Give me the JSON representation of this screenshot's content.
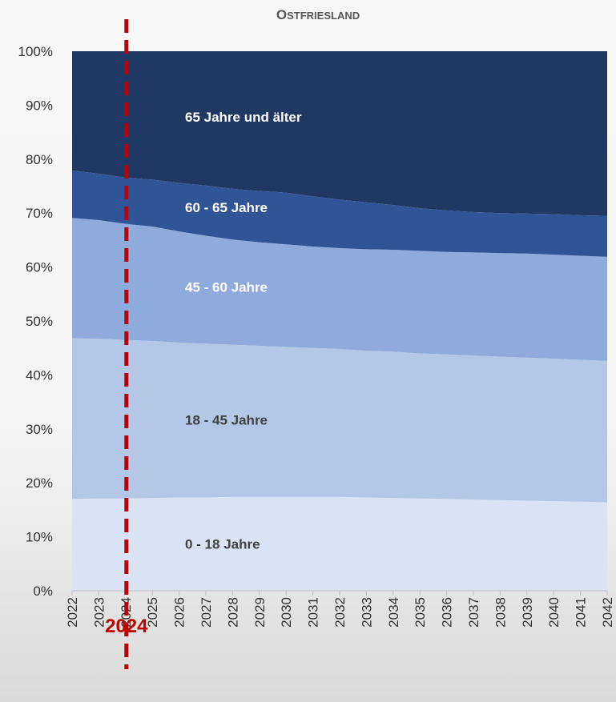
{
  "chart_data": {
    "type": "area",
    "stacked": true,
    "normalized": true,
    "title": "OSTFRIESLAND",
    "x": [
      "2022",
      "2023",
      "2024",
      "2025",
      "2026",
      "2027",
      "2028",
      "2029",
      "2030",
      "2031",
      "2032",
      "2033",
      "2034",
      "2035",
      "2036",
      "2037",
      "2038",
      "2039",
      "2040",
      "2041",
      "2042"
    ],
    "ylim": [
      0,
      100
    ],
    "yticks": [
      "0%",
      "10%",
      "20%",
      "30%",
      "40%",
      "50%",
      "60%",
      "70%",
      "80%",
      "90%",
      "100%"
    ],
    "series": [
      {
        "name": "0 - 18 Jahre",
        "color": "#dae3f3",
        "label_color": "#404040",
        "values": [
          17.0,
          17.1,
          17.1,
          17.2,
          17.3,
          17.3,
          17.4,
          17.4,
          17.4,
          17.4,
          17.4,
          17.3,
          17.2,
          17.1,
          17.0,
          16.9,
          16.8,
          16.7,
          16.6,
          16.5,
          16.4
        ]
      },
      {
        "name": "18 - 45 Jahre",
        "color": "#b4c7e7",
        "label_color": "#404040",
        "values": [
          29.8,
          29.6,
          29.4,
          29.1,
          28.7,
          28.5,
          28.2,
          28.0,
          27.8,
          27.6,
          27.4,
          27.2,
          27.1,
          26.9,
          26.8,
          26.7,
          26.6,
          26.5,
          26.4,
          26.3,
          26.2
        ]
      },
      {
        "name": "45 - 60 Jahre",
        "color": "#8faadc",
        "label_color": "#ffffff",
        "values": [
          22.3,
          22.0,
          21.5,
          21.2,
          20.6,
          20.0,
          19.5,
          19.2,
          19.0,
          18.8,
          18.7,
          18.8,
          18.9,
          19.0,
          19.0,
          19.1,
          19.2,
          19.3,
          19.3,
          19.3,
          19.3
        ]
      },
      {
        "name": "60 - 65 Jahre",
        "color": "#2f5597",
        "label_color": "#ffffff",
        "values": [
          8.8,
          8.6,
          8.6,
          8.7,
          9.0,
          9.3,
          9.4,
          9.5,
          9.6,
          9.3,
          9.0,
          8.7,
          8.3,
          7.9,
          7.7,
          7.5,
          7.4,
          7.4,
          7.5,
          7.5,
          7.6
        ]
      },
      {
        "name": "65 Jahre und älter",
        "color": "#203864",
        "label_color": "#ffffff",
        "values": [
          22.1,
          22.7,
          23.4,
          23.8,
          24.4,
          24.9,
          25.5,
          25.9,
          26.2,
          26.9,
          27.5,
          28.0,
          28.5,
          29.1,
          29.5,
          29.8,
          30.0,
          30.1,
          30.2,
          30.4,
          30.5
        ]
      }
    ],
    "marker": {
      "label": "2024",
      "x": "2024",
      "color": "#c00000"
    },
    "legend": "inline labels"
  }
}
